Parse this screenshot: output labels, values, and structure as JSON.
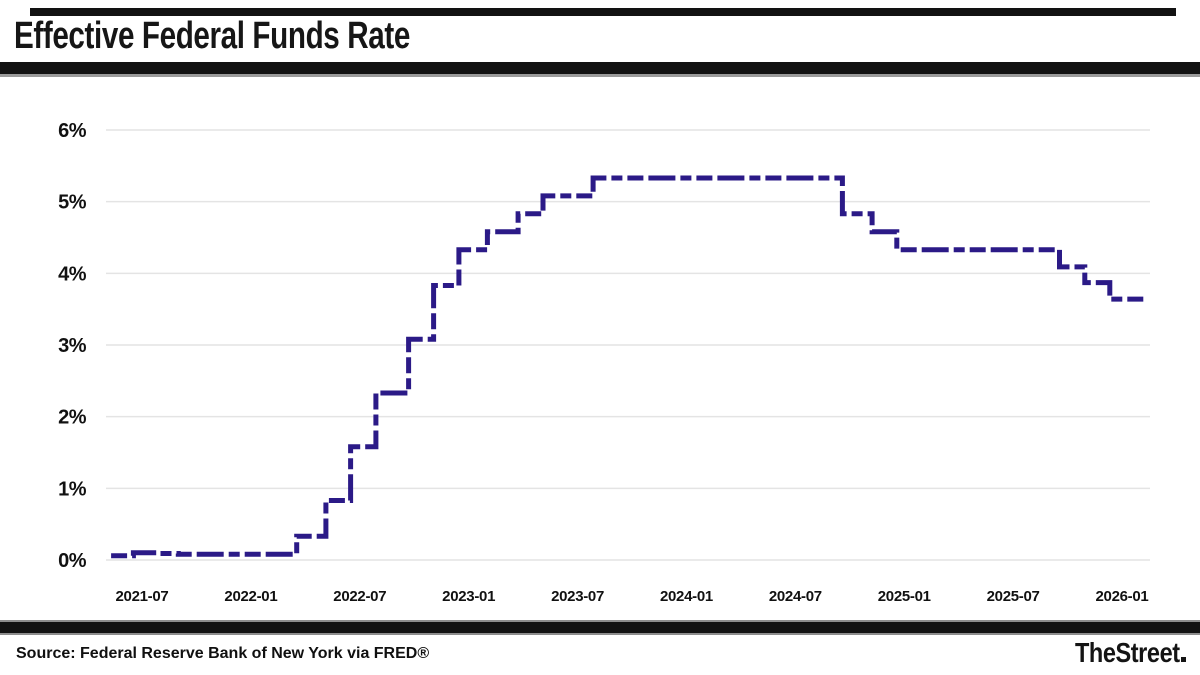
{
  "header": {
    "title": "Effective Federal Funds Rate"
  },
  "footer": {
    "source": "Source: Federal Reserve Bank of New York via FRED®",
    "brand": "TheStreet"
  },
  "chart_data": {
    "type": "line",
    "step": true,
    "dashed": true,
    "title": "Effective Federal Funds Rate",
    "xlabel": "",
    "ylabel": "",
    "ylim": [
      0,
      6
    ],
    "x_range": [
      "2021-05-10",
      "2026-02-10"
    ],
    "grid": true,
    "legend": "none",
    "line_color": "#2b1a87",
    "grid_color": "#e4e4e4",
    "tick_color": "#111111",
    "x_ticks": [
      "2021-07",
      "2022-01",
      "2022-07",
      "2023-01",
      "2023-07",
      "2024-01",
      "2024-07",
      "2025-01",
      "2025-07",
      "2026-01"
    ],
    "y_ticks": [
      {
        "label": "0%",
        "value": 0
      },
      {
        "label": "1%",
        "value": 1
      },
      {
        "label": "2%",
        "value": 2
      },
      {
        "label": "3%",
        "value": 3
      },
      {
        "label": "4%",
        "value": 4
      },
      {
        "label": "5%",
        "value": 5
      },
      {
        "label": "6%",
        "value": 6
      }
    ],
    "series": [
      {
        "name": "Effective Federal Funds Rate (%)",
        "points": [
          [
            "2021-05-10",
            0.06
          ],
          [
            "2021-06-17",
            0.1
          ],
          [
            "2021-07-29",
            0.09
          ],
          [
            "2021-09-01",
            0.08
          ],
          [
            "2022-03-17",
            0.33
          ],
          [
            "2022-05-05",
            0.83
          ],
          [
            "2022-06-16",
            1.58
          ],
          [
            "2022-07-28",
            2.33
          ],
          [
            "2022-09-22",
            3.08
          ],
          [
            "2022-11-03",
            3.83
          ],
          [
            "2022-12-15",
            4.33
          ],
          [
            "2023-02-02",
            4.58
          ],
          [
            "2023-03-23",
            4.83
          ],
          [
            "2023-05-04",
            5.08
          ],
          [
            "2023-07-27",
            5.33
          ],
          [
            "2024-09-19",
            4.83
          ],
          [
            "2024-11-08",
            4.58
          ],
          [
            "2024-12-19",
            4.33
          ],
          [
            "2025-09-18",
            4.09
          ],
          [
            "2025-10-30",
            3.87
          ],
          [
            "2025-12-11",
            3.64
          ],
          [
            "2026-02-10",
            3.64
          ]
        ]
      }
    ]
  }
}
